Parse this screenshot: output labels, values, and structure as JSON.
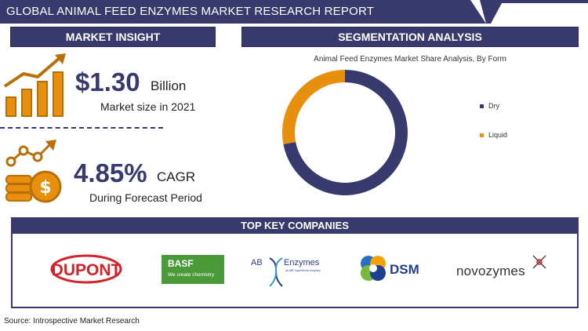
{
  "banner": {
    "title": "GLOBAL ANIMAL FEED ENZYMES MARKET RESEARCH REPORT"
  },
  "market_insight": {
    "header": "MARKET INSIGHT",
    "market_size": "$1.30",
    "market_size_unit": "Billion",
    "market_size_label": "Market size in 2021",
    "cagr": "4.85%",
    "cagr_unit": "CAGR",
    "cagr_label": "During Forecast Period"
  },
  "segmentation": {
    "header": "SEGMENTATION ANALYSIS"
  },
  "chart_data": {
    "type": "pie",
    "title": "Animal Feed Enzymes Market Share Analysis, By Form",
    "categories": [
      "Dry",
      "Liquid"
    ],
    "values": [
      72,
      28
    ],
    "colors": [
      "#383a6e",
      "#e8900e"
    ],
    "legend_position": "right"
  },
  "companies": {
    "header": "TOP KEY COMPANIES",
    "dupont": "DUPONT",
    "basf_name": "BASF",
    "basf_tagline": "We create chemistry",
    "ab_prefix": "AB",
    "ab_name": "Enzymes",
    "ab_sub": "an ABF ingredients company",
    "dsm": "DSM",
    "novozymes": "novozymes"
  },
  "source": "Source: Introspective Market Research",
  "colors": {
    "navy": "#383a6e",
    "orange": "#e8900e",
    "basf_green": "#4a9a3a",
    "dupont_red": "#d0232a"
  }
}
